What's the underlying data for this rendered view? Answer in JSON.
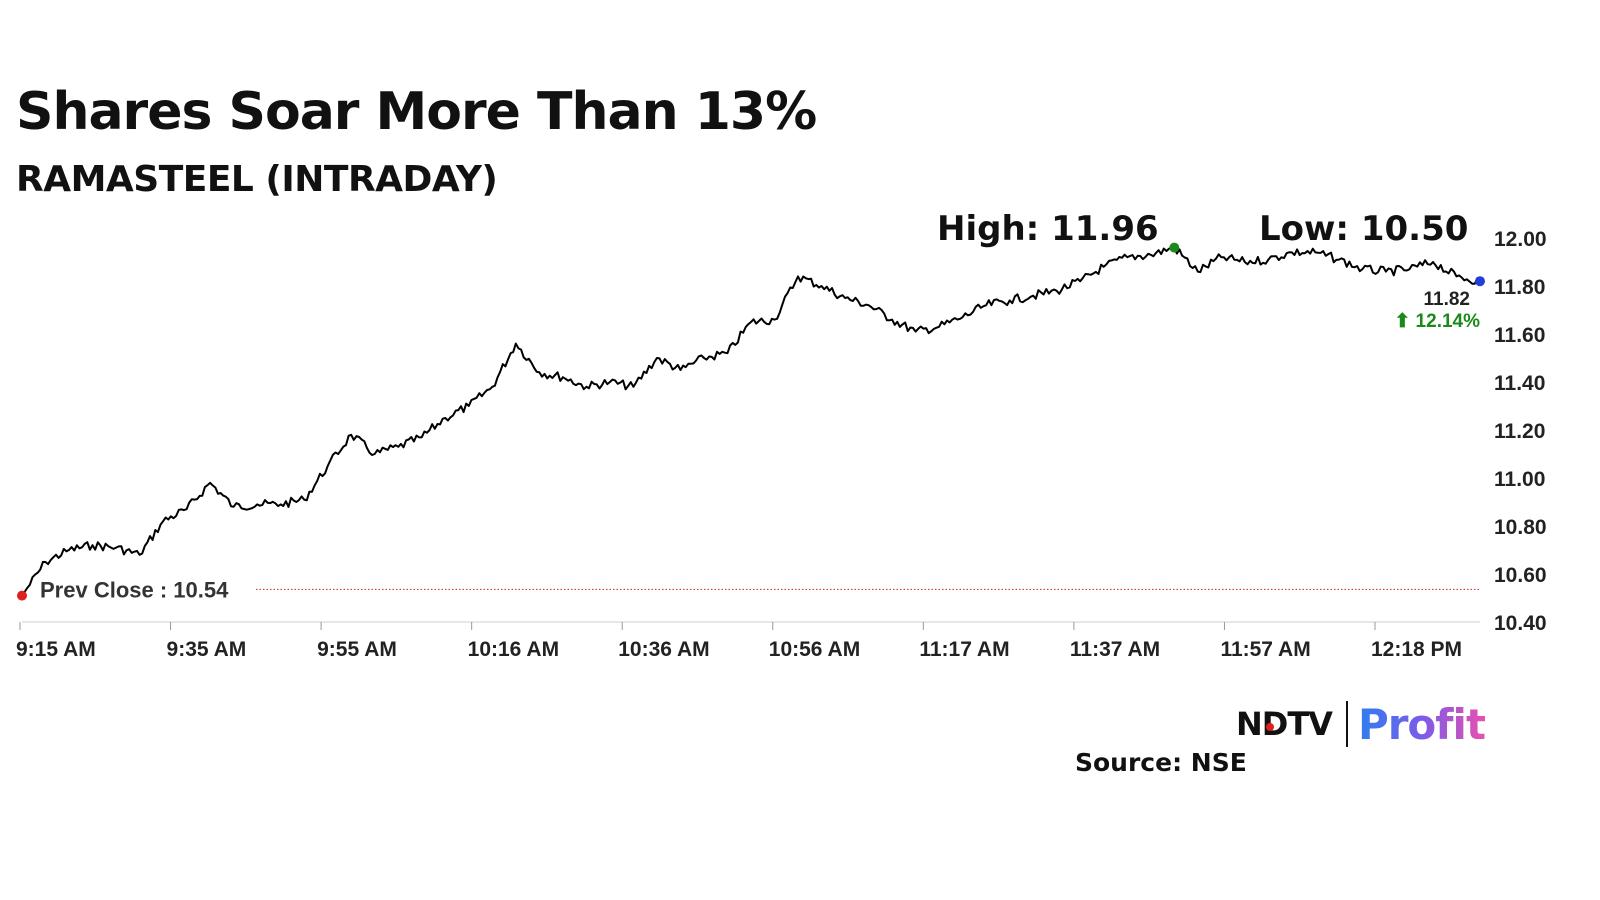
{
  "title": "Shares Soar More Than 13%",
  "subtitle": "RAMASTEEL (INTRADAY)",
  "source": "Source: NSE",
  "logo": {
    "ndtv": "NDTV",
    "profit": "Profit"
  },
  "colors": {
    "line": "#000000",
    "high_marker": "#1a8a1a",
    "last_marker": "#1f3fd6",
    "prev_close_marker": "#e02020",
    "change_positive": "#1a8a1a"
  },
  "chart_data": {
    "type": "line",
    "ylim": [
      10.4,
      12.0
    ],
    "y_ticks": [
      "12.00",
      "11.80",
      "11.60",
      "11.40",
      "11.20",
      "11.00",
      "10.80",
      "10.60",
      "10.40"
    ],
    "x_ticks": [
      "9:15 AM",
      "9:35 AM",
      "9:55 AM",
      "10:16 AM",
      "10:36 AM",
      "10:56 AM",
      "11:17 AM",
      "11:37 AM",
      "11:57 AM",
      "12:18 PM"
    ],
    "high_label": "High: 11.96",
    "low_label": "Low: 10.50",
    "prev_close": 10.54,
    "prev_close_label": "Prev Close : 10.54",
    "last_value": 11.82,
    "last_value_label": "11.82",
    "change_label": "⬆ 12.14%",
    "x": [
      "9:15 AM",
      "9:17 AM",
      "9:21 AM",
      "9:25 AM",
      "9:30 AM",
      "9:33 AM",
      "9:35 AM",
      "9:37 AM",
      "9:40 AM",
      "9:42 AM",
      "9:45 AM",
      "9:48 AM",
      "9:52 AM",
      "9:55 AM",
      "9:58 AM",
      "10:00 AM",
      "10:03 AM",
      "10:06 AM",
      "10:10 AM",
      "10:13 AM",
      "10:16 AM",
      "10:18 AM",
      "10:20 AM",
      "10:22 AM",
      "10:25 AM",
      "10:28 AM",
      "10:31 AM",
      "10:34 AM",
      "10:37 AM",
      "10:41 AM",
      "10:44 AM",
      "10:46 AM",
      "10:47 AM",
      "10:49 AM",
      "10:51 AM",
      "10:54 AM",
      "10:57 AM",
      "11:01 AM",
      "11:04 AM",
      "11:07 AM",
      "11:10 AM",
      "11:14 AM",
      "11:18 AM",
      "11:22 AM",
      "11:25 AM",
      "11:29 AM",
      "11:32 AM",
      "11:36 AM",
      "11:40 AM",
      "11:42 AM",
      "11:45 AM",
      "11:47 AM",
      "11:50 AM",
      "11:53 AM",
      "11:58 AM",
      "12:03 PM",
      "12:07 PM",
      "12:12 PM",
      "12:16 PM",
      "12:20 PM",
      "12:23 PM",
      "12:27 PM",
      "12:29 PM"
    ],
    "values": [
      10.51,
      10.65,
      10.7,
      10.72,
      10.71,
      10.68,
      10.82,
      10.87,
      10.98,
      10.88,
      10.89,
      10.89,
      10.91,
      11.05,
      11.18,
      11.1,
      11.13,
      11.17,
      11.25,
      11.3,
      11.38,
      11.56,
      11.44,
      11.42,
      11.38,
      11.4,
      11.38,
      11.5,
      11.45,
      11.5,
      11.52,
      11.65,
      11.66,
      11.84,
      11.8,
      11.75,
      11.72,
      11.66,
      11.61,
      11.63,
      11.67,
      11.72,
      11.74,
      11.76,
      11.78,
      11.82,
      11.88,
      11.92,
      11.93,
      11.96,
      11.86,
      11.92,
      11.9,
      11.91,
      11.94,
      11.94,
      11.91,
      11.87,
      11.86,
      11.87,
      11.9,
      11.84,
      11.82
    ]
  }
}
